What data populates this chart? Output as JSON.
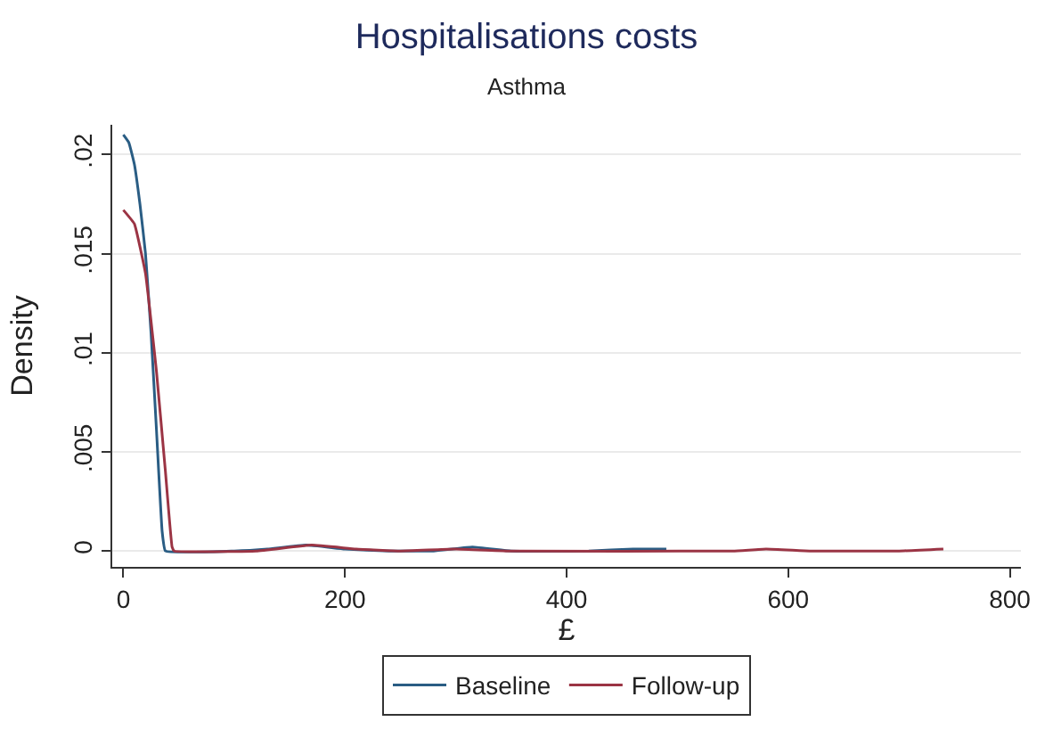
{
  "chart_data": {
    "type": "line",
    "title": "Hospitalisations costs",
    "subtitle": "Asthma",
    "xlabel": "£",
    "ylabel": "Density",
    "xlim": [
      -10,
      810
    ],
    "xticks": [
      0,
      200,
      400,
      600,
      800
    ],
    "ylim": [
      -0.0008,
      0.0215
    ],
    "yticks": [
      {
        "value": 0,
        "label": "0"
      },
      {
        "value": 0.005,
        "label": ".005"
      },
      {
        "value": 0.01,
        "label": ".01"
      },
      {
        "value": 0.015,
        "label": ".015"
      },
      {
        "value": 0.02,
        "label": ".02"
      }
    ],
    "grid": "y",
    "legend": "bottom",
    "marker": "none",
    "line_style": "solid",
    "series": [
      {
        "name": "Baseline",
        "color": "#2a5d84",
        "x": [
          0,
          5,
          10,
          15,
          20,
          25,
          30,
          35,
          38,
          100,
          130,
          165,
          200,
          240,
          280,
          315,
          350,
          420,
          460,
          490
        ],
        "values": [
          0.021,
          0.0206,
          0.0195,
          0.0175,
          0.015,
          0.011,
          0.006,
          0.001,
          0,
          0,
          0.0001,
          0.0003,
          0.0001,
          0,
          0,
          0.0002,
          0,
          0,
          0.0001,
          0.0001
        ]
      },
      {
        "name": "Follow-up",
        "color": "#9b3444",
        "x": [
          0,
          10,
          20,
          30,
          38,
          44,
          46,
          120,
          170,
          210,
          250,
          300,
          350,
          550,
          580,
          620,
          700,
          740
        ],
        "values": [
          0.0172,
          0.0165,
          0.014,
          0.009,
          0.004,
          0.0002,
          0,
          0,
          0.0003,
          0.0001,
          0,
          0.0001,
          0,
          0,
          0.0001,
          0,
          0,
          0.0001
        ]
      }
    ]
  }
}
